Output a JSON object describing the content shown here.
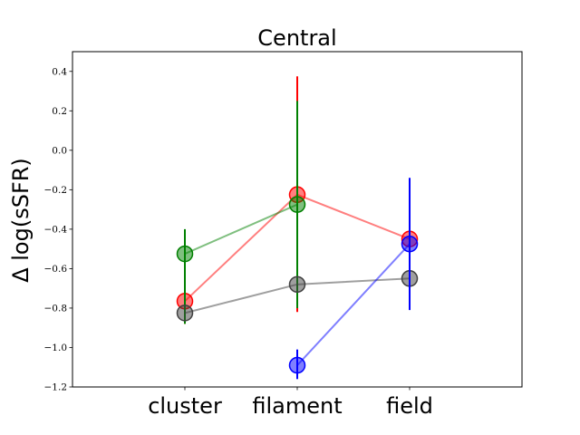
{
  "chart_data": {
    "type": "scatter",
    "title": "Central",
    "xlabel": "",
    "ylabel": "Δ log(sSFR)",
    "categories": [
      "cluster",
      "filament",
      "field"
    ],
    "ylim": [
      -1.2,
      0.5
    ],
    "yticks": [
      -1.2,
      -1.0,
      -0.8,
      -0.6,
      -0.4,
      -0.2,
      0.0,
      0.2,
      0.4
    ],
    "ytick_labels": [
      "−1.2",
      "−1.0",
      "−0.8",
      "−0.6",
      "−0.4",
      "−0.2",
      "0.0",
      "0.2",
      "0.4"
    ],
    "grid": false,
    "series": [
      {
        "color": "#ff0000",
        "values": [
          -0.765,
          -0.225,
          -0.45
        ],
        "err_low": [
          -0.88,
          -0.82,
          null
        ],
        "err_high": [
          -0.65,
          0.375,
          null
        ]
      },
      {
        "color": "#008000",
        "values": [
          -0.525,
          -0.275,
          null
        ],
        "err_low": [
          -0.88,
          -0.8,
          null
        ],
        "err_high": [
          -0.4,
          0.25,
          null
        ]
      },
      {
        "color": "#404040",
        "values": [
          -0.825,
          -0.68,
          -0.65
        ],
        "err_low": [
          null,
          null,
          null
        ],
        "err_high": [
          null,
          null,
          null
        ]
      },
      {
        "color": "#0000ff",
        "values": [
          null,
          -1.09,
          -0.475
        ],
        "err_low": [
          null,
          -1.16,
          -0.81
        ],
        "err_high": [
          null,
          -1.01,
          -0.14
        ]
      }
    ]
  }
}
